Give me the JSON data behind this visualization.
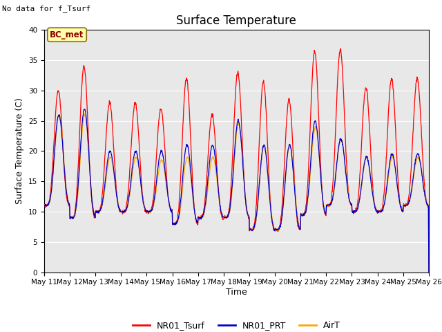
{
  "title": "Surface Temperature",
  "xlabel": "Time",
  "ylabel": "Surface Temperature (C)",
  "top_left_text": "No data for f_Tsurf",
  "annotation_box": "BC_met",
  "ylim": [
    0,
    40
  ],
  "yticks": [
    0,
    5,
    10,
    15,
    20,
    25,
    30,
    35,
    40
  ],
  "x_tick_days": [
    11,
    12,
    13,
    14,
    15,
    16,
    17,
    18,
    19,
    20,
    21,
    22,
    23,
    24,
    25,
    26
  ],
  "series_colors": {
    "NR01_Tsurf": "#FF0000",
    "NR01_PRT": "#0000CC",
    "AirT": "#FFA500"
  },
  "bg_color": "#E8E8E8",
  "title_fontsize": 12,
  "label_fontsize": 9,
  "tick_fontsize": 7.5,
  "legend_fontsize": 9,
  "lw": 0.9,
  "daily_min": [
    11,
    9,
    10,
    10,
    10,
    8,
    9,
    9,
    7,
    7,
    9.5,
    11,
    10,
    10,
    11
  ],
  "daily_max_red": [
    30,
    34,
    28,
    28,
    27,
    32,
    26,
    33,
    31.5,
    28.5,
    36.5,
    36.7,
    30.5,
    32,
    32
  ],
  "daily_max_blue": [
    26,
    27,
    20,
    20,
    20,
    21,
    21,
    25,
    21,
    21,
    25,
    22,
    19,
    19.5,
    19.5
  ],
  "daily_max_orange": [
    26,
    26,
    19,
    19,
    18.5,
    19,
    19,
    24.5,
    21,
    21,
    24,
    22,
    19,
    19,
    19
  ]
}
